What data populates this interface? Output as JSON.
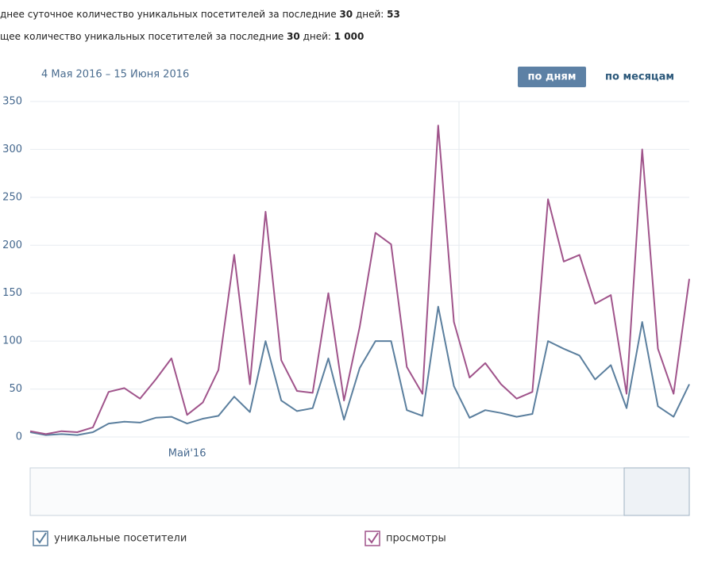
{
  "header": {
    "lines": [
      {
        "text": "днее суточное количество уникальных посетителей за последние ",
        "days": "30",
        "mid": " дней: ",
        "value": "53"
      },
      {
        "text": "щее количество уникальных посетителей за последние ",
        "days": "30",
        "mid": " дней: ",
        "value": "1 000"
      }
    ],
    "period": "4 Мая 2016 – 15 Июня 2016",
    "buttons": [
      "по дням",
      "по месяцам"
    ]
  },
  "chart_data": {
    "type": "line",
    "categories": [
      null,
      null,
      null,
      null,
      null,
      null,
      null,
      null,
      null,
      null,
      "Май'16",
      null,
      null,
      null,
      null,
      null,
      null,
      null,
      null,
      null,
      null,
      null,
      null,
      null,
      null,
      null,
      null,
      null,
      null,
      null,
      null,
      null,
      null,
      null,
      null,
      null,
      null,
      null,
      null,
      null,
      null,
      null,
      null
    ],
    "series": [
      {
        "name": "уникальные посетители",
        "color": "#5b7f9e",
        "values": [
          5,
          2,
          3,
          2,
          5,
          14,
          16,
          15,
          20,
          21,
          14,
          19,
          22,
          42,
          26,
          100,
          38,
          27,
          30,
          82,
          18,
          72,
          100,
          100,
          28,
          22,
          136,
          53,
          20,
          28,
          25,
          21,
          24,
          100,
          92,
          85,
          60,
          75,
          30,
          120,
          32,
          21,
          55
        ]
      },
      {
        "name": "просмотры",
        "color": "#a0548b",
        "values": [
          6,
          3,
          6,
          5,
          10,
          47,
          51,
          40,
          60,
          82,
          23,
          36,
          70,
          190,
          55,
          235,
          80,
          48,
          46,
          150,
          38,
          115,
          213,
          201,
          73,
          45,
          325,
          120,
          62,
          77,
          55,
          40,
          47,
          248,
          183,
          190,
          139,
          148,
          45,
          300,
          92,
          45,
          165
        ]
      }
    ],
    "ylim": [
      0,
      350
    ],
    "yticks": [
      0,
      50,
      100,
      150,
      200,
      250,
      300,
      350
    ],
    "grid": true
  }
}
